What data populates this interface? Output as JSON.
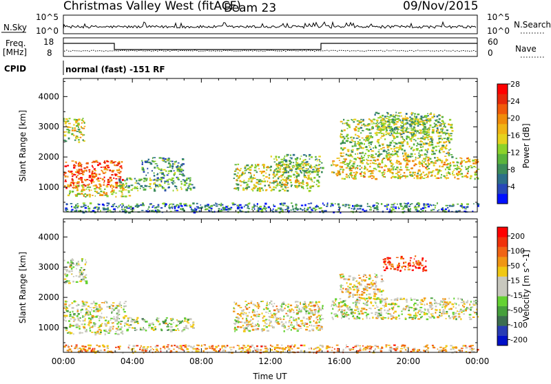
{
  "header": {
    "title": "Christmas Valley West (fitACF)",
    "beam": "Beam 23",
    "date": "09/Nov/2015"
  },
  "status_panels": {
    "nsky_label": "N.Sky",
    "nsky_ticks": [
      "10^5",
      "10^0"
    ],
    "nsearch_label": "N.Search",
    "nsearch_ticks": [
      "10^5",
      "10^0"
    ],
    "freq_label": "Freq.",
    "freq_unit": "[MHz]",
    "freq_ticks": [
      "18",
      "8"
    ],
    "nave_label": "Nave",
    "nave_ticks": [
      "60",
      "0"
    ],
    "cpid_label": "CPID",
    "cpid_text": "normal (fast) -151 RF"
  },
  "chart_data": [
    {
      "type": "heatmap",
      "name": "power-panel",
      "ylabel": "Slant Range [km]",
      "ylim": [
        180,
        4600
      ],
      "yticks": [
        1000,
        2000,
        3000,
        4000
      ],
      "xlim": [
        0,
        24
      ],
      "xticks": [
        0,
        4,
        8,
        12,
        16,
        20,
        24
      ],
      "colorbar": {
        "label": "Power [dB]",
        "ticks": [
          "4",
          "8",
          "12",
          "16",
          "20",
          "24",
          "28"
        ],
        "colors": [
          "#0010ff",
          "#2848b8",
          "#2c6e8a",
          "#3c8c5a",
          "#5ab43c",
          "#8cd22a",
          "#e6d21e",
          "#f0b414",
          "#f08c0a",
          "#f05a0a",
          "#e6280a",
          "#ff0000"
        ]
      },
      "regions": [
        {
          "t0": 0.0,
          "t1": 3.4,
          "r0": 1000,
          "r1": 1900,
          "level": 0.85
        },
        {
          "t0": 0.2,
          "t1": 3.8,
          "r0": 700,
          "r1": 1100,
          "level": 0.55
        },
        {
          "t0": 0.0,
          "t1": 1.2,
          "r0": 2500,
          "r1": 3300,
          "level": 0.5
        },
        {
          "t0": 3.2,
          "t1": 7.5,
          "r0": 900,
          "r1": 1350,
          "level": 0.35
        },
        {
          "t0": 4.5,
          "t1": 7.0,
          "r0": 1400,
          "r1": 2000,
          "level": 0.3
        },
        {
          "t0": 9.8,
          "t1": 14.8,
          "r0": 900,
          "r1": 1800,
          "level": 0.5
        },
        {
          "t0": 12.0,
          "t1": 15.0,
          "r0": 1500,
          "r1": 2100,
          "level": 0.4
        },
        {
          "t0": 15.5,
          "t1": 24.0,
          "r0": 1300,
          "r1": 2000,
          "level": 0.55
        },
        {
          "t0": 16.0,
          "t1": 22.5,
          "r0": 2000,
          "r1": 3300,
          "level": 0.45
        },
        {
          "t0": 18.0,
          "t1": 22.0,
          "r0": 2800,
          "r1": 3500,
          "level": 0.4
        },
        {
          "t0": 0.0,
          "t1": 24.0,
          "r0": 190,
          "r1": 500,
          "level": 0.25
        }
      ]
    },
    {
      "type": "heatmap",
      "name": "velocity-panel",
      "ylabel": "Slant Range [km]",
      "ylim": [
        180,
        4600
      ],
      "yticks": [
        1000,
        2000,
        3000,
        4000
      ],
      "xlim": [
        0,
        24
      ],
      "xticks": [
        0,
        4,
        8,
        12,
        16,
        20,
        24
      ],
      "xtick_labels": [
        "00:00",
        "04:00",
        "08:00",
        "12:00",
        "16:00",
        "20:00",
        "00:00"
      ],
      "xlabel": "Time UT",
      "colorbar": {
        "label": "Velocity [m s^-1]",
        "ticks": [
          "200",
          "100",
          "50",
          "15",
          "-15",
          "-50",
          "-100",
          "-200"
        ],
        "colors": [
          "#0010c8",
          "#283cb4",
          "#3c6e50",
          "#46a03c",
          "#64d232",
          "#c8c8be",
          "#c8c8be",
          "#f0c814",
          "#f09614",
          "#f06414",
          "#f0320a",
          "#ff0000"
        ]
      },
      "regions": [
        {
          "t0": 0.0,
          "t1": 3.6,
          "r0": 800,
          "r1": 1900,
          "level": 0.5
        },
        {
          "t0": 0.0,
          "t1": 1.3,
          "r0": 2500,
          "r1": 3300,
          "level": 0.45
        },
        {
          "t0": 3.5,
          "t1": 7.5,
          "r0": 900,
          "r1": 1350,
          "level": 0.45
        },
        {
          "t0": 9.8,
          "t1": 15.0,
          "r0": 900,
          "r1": 1900,
          "level": 0.55
        },
        {
          "t0": 15.5,
          "t1": 24.0,
          "r0": 1300,
          "r1": 2000,
          "level": 0.5
        },
        {
          "t0": 16.0,
          "t1": 18.5,
          "r0": 2000,
          "r1": 2800,
          "level": 0.6
        },
        {
          "t0": 18.5,
          "t1": 21.0,
          "r0": 2900,
          "r1": 3400,
          "level": 0.9
        },
        {
          "t0": 0.0,
          "t1": 24.0,
          "r0": 190,
          "r1": 450,
          "level": 0.7
        }
      ]
    }
  ]
}
